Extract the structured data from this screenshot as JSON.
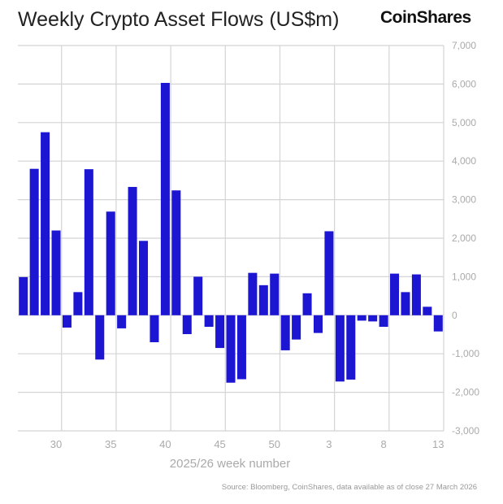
{
  "chart_data": {
    "type": "bar",
    "title": "Weekly Crypto Asset Flows (US$m)",
    "xlabel": "2025/26 week number",
    "ylabel": "",
    "ylim": [
      -3000,
      7000
    ],
    "yticks": [
      "-3,000",
      "-2,000",
      "-1,000",
      "0",
      "1,000",
      "2,000",
      "3,000",
      "4,000",
      "5,000",
      "6,000",
      "7,000"
    ],
    "xtick_labels": [
      "30",
      "35",
      "40",
      "45",
      "50",
      "3",
      "8",
      "13"
    ],
    "categories": [
      "27",
      "28",
      "29",
      "30",
      "31",
      "32",
      "33",
      "34",
      "35",
      "36",
      "37",
      "38",
      "39",
      "40",
      "41",
      "42",
      "43",
      "44",
      "45",
      "46",
      "47",
      "48",
      "49",
      "50",
      "51",
      "52",
      "1",
      "2",
      "3",
      "4",
      "5",
      "6",
      "7",
      "8",
      "9",
      "10",
      "11",
      "12",
      "13"
    ],
    "values": [
      990,
      3800,
      4750,
      2200,
      -320,
      600,
      3790,
      -1150,
      2690,
      -340,
      3330,
      1930,
      -700,
      6030,
      3240,
      -490,
      1000,
      -300,
      -850,
      -1750,
      -1660,
      1100,
      780,
      1080,
      -910,
      -630,
      570,
      -460,
      2180,
      -1720,
      -1670,
      -140,
      -160,
      -300,
      1080,
      600,
      1060,
      220,
      -420
    ],
    "grid": true,
    "legend": "none",
    "bar_color": "#1c15d2",
    "source": "Source: Bloomberg, CoinShares, data available as of close 27 March 2026"
  },
  "brand": "CoinShares"
}
